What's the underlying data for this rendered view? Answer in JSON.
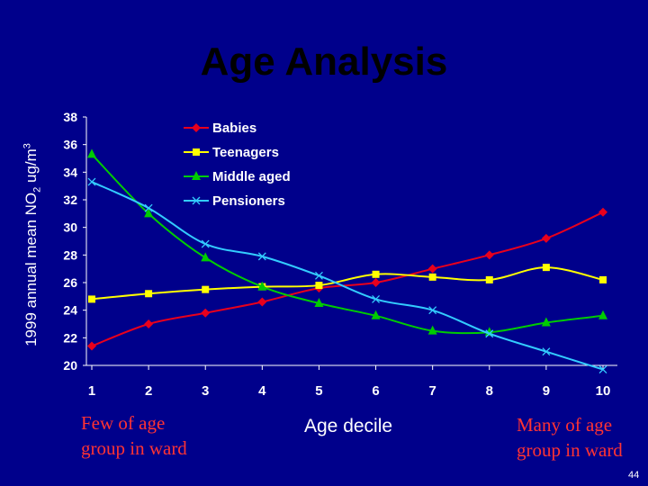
{
  "slide": {
    "title": "Age Analysis",
    "ylabel_main": "1999 annual mean NO",
    "ylabel_sub": "2",
    "ylabel_unit": " ug/m",
    "ylabel_sup": "3",
    "note_left_line1": "Few of age",
    "note_left_line2": "group in ward",
    "note_right_line1": "Many of age",
    "note_right_line2": "group in ward",
    "xlabel": "Age decile",
    "page_number": "44",
    "colors": {
      "background": "#00008B",
      "title": "#000000",
      "axis_text": "#FFFFFF",
      "notes": "#FF3333"
    }
  },
  "chart_data": {
    "type": "line",
    "title": "Age Analysis",
    "xlabel": "Age decile",
    "ylabel": "1999 annual mean NO2 ug/m3",
    "categories": [
      "1",
      "2",
      "3",
      "4",
      "5",
      "6",
      "7",
      "8",
      "9",
      "10"
    ],
    "yticks": [
      "20",
      "22",
      "24",
      "26",
      "28",
      "30",
      "32",
      "34",
      "36",
      "38"
    ],
    "ylim": [
      20,
      38
    ],
    "grid": false,
    "legend_position": "top-left",
    "series": [
      {
        "name": "Babies",
        "color": "#E8001C",
        "marker": "diamond",
        "values": [
          21.4,
          23.0,
          23.8,
          24.6,
          25.6,
          26.0,
          27.0,
          28.0,
          29.2,
          31.1
        ]
      },
      {
        "name": "Teenagers",
        "color": "#FFFF00",
        "marker": "square",
        "values": [
          24.8,
          25.2,
          25.5,
          25.7,
          25.8,
          26.6,
          26.4,
          26.2,
          27.1,
          26.2
        ]
      },
      {
        "name": "Middle aged",
        "color": "#00CC00",
        "marker": "triangle",
        "values": [
          35.3,
          31.0,
          27.8,
          25.7,
          24.5,
          23.6,
          22.5,
          22.4,
          23.1,
          23.6
        ]
      },
      {
        "name": "Pensioners",
        "color": "#33CCFF",
        "marker": "x",
        "values": [
          33.3,
          31.4,
          28.8,
          27.9,
          26.5,
          24.8,
          24.0,
          22.3,
          21.0,
          19.7
        ]
      }
    ]
  }
}
